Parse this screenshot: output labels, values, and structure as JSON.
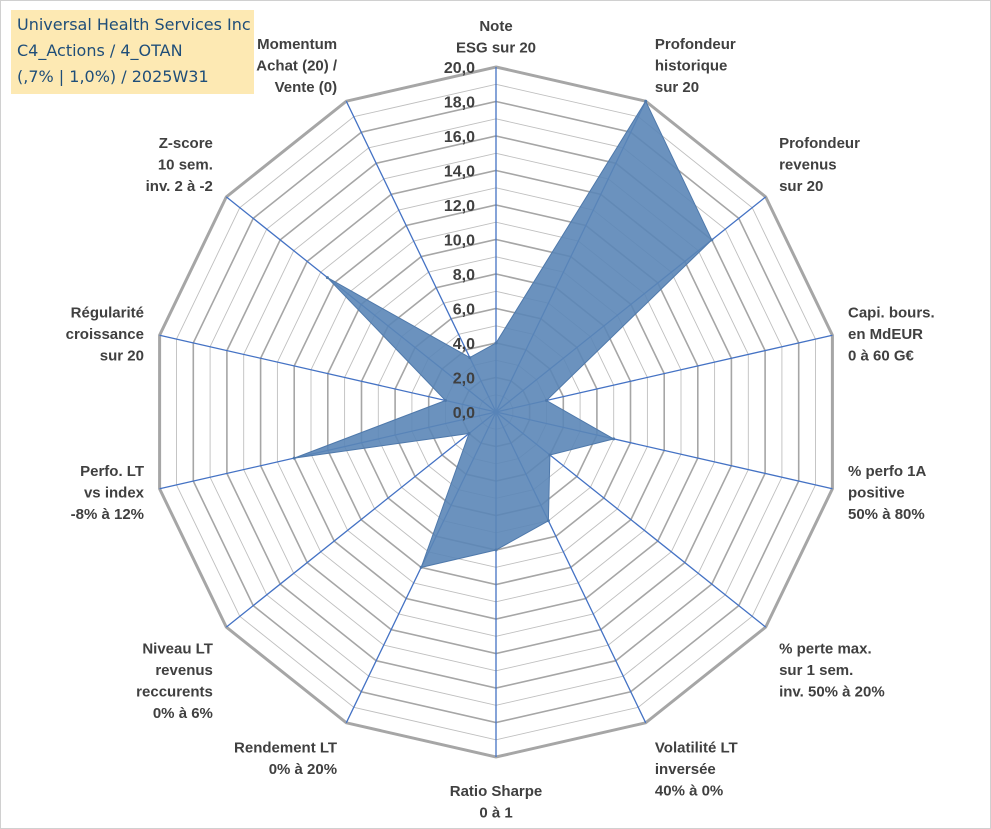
{
  "title_lines": [
    "Universal Health Services Inc",
    "C4_Actions / 4_OTAN",
    "(,7% | 1,0%) / 2025W31"
  ],
  "colors": {
    "fill": "#5b86b7",
    "axis_spokes": "#4472c4",
    "grid": "#bfbfbf",
    "grid_major": "#a6a6a6",
    "title_bg": "#fde9b3",
    "title_text": "#1f4e79"
  },
  "chart_data": {
    "type": "radar",
    "rmin": 0,
    "rmax": 20,
    "major_step": 2,
    "minor_step": 1,
    "tick_labels": [
      "0,0",
      "2,0",
      "4,0",
      "6,0",
      "8,0",
      "10,0",
      "12,0",
      "14,0",
      "16,0",
      "18,0",
      "20,0"
    ],
    "axes": [
      {
        "label": [
          "Note",
          "ESG sur 20"
        ],
        "value": 4.0
      },
      {
        "label": [
          "Profondeur",
          "historique",
          "sur 20"
        ],
        "value": 20.0
      },
      {
        "label": [
          "Profondeur",
          "revenus",
          "sur 20"
        ],
        "value": 16.0
      },
      {
        "label": [
          "Capi. bours.",
          "en MdEUR",
          "0 à 60 G€"
        ],
        "value": 3.0
      },
      {
        "label": [
          "% perfo 1A",
          "positive",
          "50% à 80%"
        ],
        "value": 7.0
      },
      {
        "label": [
          "% perte max.",
          "sur 1 sem.",
          "inv. 50% à 20%"
        ],
        "value": 4.0
      },
      {
        "label": [
          "Volatilité LT",
          "inversée",
          "40% à 0%"
        ],
        "value": 7.0
      },
      {
        "label": [
          "Ratio Sharpe",
          "0 à 1"
        ],
        "value": 8.0
      },
      {
        "label": [
          "Rendement LT",
          "0% à 20%"
        ],
        "value": 10.0
      },
      {
        "label": [
          "Niveau LT",
          "revenus",
          "reccurents",
          "0% à 6%"
        ],
        "value": 2.0
      },
      {
        "label": [
          "Perfo. LT",
          "vs index",
          "-8% à 12%"
        ],
        "value": 12.0
      },
      {
        "label": [
          "Régularité",
          "croissance",
          "sur 20"
        ],
        "value": 3.0
      },
      {
        "label": [
          "Z-score",
          "10 sem.",
          "inv. 2 à -2"
        ],
        "value": 12.5
      },
      {
        "label": [
          "Momentum",
          "Achat (20) /",
          "Vente (0)"
        ],
        "value": 3.5
      }
    ]
  }
}
